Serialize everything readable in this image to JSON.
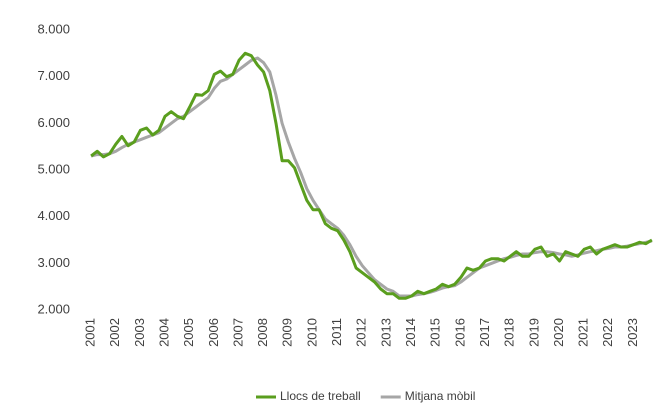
{
  "chart_data": {
    "type": "line",
    "categories": [
      "2001",
      null,
      null,
      null,
      "2002",
      null,
      null,
      null,
      "2003",
      null,
      null,
      null,
      "2004",
      null,
      null,
      null,
      "2005",
      null,
      null,
      null,
      "2006",
      null,
      null,
      null,
      "2007",
      null,
      null,
      null,
      "2008",
      null,
      null,
      null,
      "2009",
      null,
      null,
      null,
      "2010",
      null,
      null,
      null,
      "2011",
      null,
      null,
      null,
      "2012",
      null,
      null,
      null,
      "2013",
      null,
      null,
      null,
      "2014",
      null,
      null,
      null,
      "2015",
      null,
      null,
      null,
      "2016",
      null,
      null,
      null,
      "2017",
      null,
      null,
      null,
      "2018",
      null,
      null,
      null,
      "2019",
      null,
      null,
      null,
      "2020",
      null,
      null,
      null,
      "2021",
      null,
      null,
      null,
      "2022",
      null,
      null,
      null,
      "2023",
      null,
      null,
      null
    ],
    "series": [
      {
        "name": "Llocs de treball",
        "color": "#5a9e1e",
        "values": [
          5300,
          5400,
          5280,
          5350,
          5550,
          5720,
          5520,
          5600,
          5850,
          5900,
          5750,
          5850,
          6150,
          6250,
          6150,
          6100,
          6350,
          6620,
          6600,
          6700,
          7050,
          7120,
          7000,
          7050,
          7350,
          7500,
          7450,
          7250,
          7100,
          6700,
          6000,
          5200,
          5200,
          5050,
          4700,
          4350,
          4150,
          4150,
          3850,
          3750,
          3700,
          3500,
          3250,
          2900,
          2800,
          2700,
          2600,
          2450,
          2350,
          2350,
          2250,
          2250,
          2300,
          2400,
          2350,
          2400,
          2450,
          2550,
          2500,
          2550,
          2700,
          2900,
          2850,
          2900,
          3050,
          3100,
          3100,
          3050,
          3150,
          3250,
          3150,
          3150,
          3300,
          3350,
          3150,
          3200,
          3050,
          3250,
          3200,
          3150,
          3300,
          3350,
          3200,
          3300,
          3350,
          3400,
          3350,
          3350,
          3400,
          3450,
          3420,
          3500
        ]
      },
      {
        "name": "Mitjana mòbil",
        "color": "#a6a6a6",
        "values": [
          5300,
          5330,
          5330,
          5350,
          5400,
          5480,
          5550,
          5600,
          5650,
          5700,
          5750,
          5800,
          5900,
          6000,
          6100,
          6150,
          6250,
          6350,
          6450,
          6550,
          6750,
          6900,
          6950,
          7050,
          7150,
          7250,
          7350,
          7400,
          7300,
          7100,
          6600,
          6000,
          5600,
          5250,
          4950,
          4600,
          4350,
          4150,
          3950,
          3850,
          3750,
          3600,
          3400,
          3150,
          2950,
          2800,
          2650,
          2550,
          2450,
          2400,
          2300,
          2300,
          2300,
          2330,
          2350,
          2380,
          2420,
          2470,
          2500,
          2520,
          2600,
          2700,
          2800,
          2900,
          2950,
          3000,
          3050,
          3100,
          3130,
          3170,
          3200,
          3200,
          3230,
          3250,
          3250,
          3230,
          3200,
          3180,
          3150,
          3180,
          3220,
          3250,
          3270,
          3300,
          3320,
          3350,
          3350,
          3370,
          3400,
          3420,
          3450,
          3480
        ]
      }
    ],
    "ylim": [
      2000,
      8000
    ],
    "yticks": [
      {
        "value": 2000,
        "label": "2.000"
      },
      {
        "value": 3000,
        "label": "3.000"
      },
      {
        "value": 4000,
        "label": "4.000"
      },
      {
        "value": 5000,
        "label": "5.000"
      },
      {
        "value": 6000,
        "label": "6.000"
      },
      {
        "value": 7000,
        "label": "7.000"
      },
      {
        "value": 8000,
        "label": "8.000"
      }
    ],
    "grid": false,
    "legend": "bottom"
  }
}
